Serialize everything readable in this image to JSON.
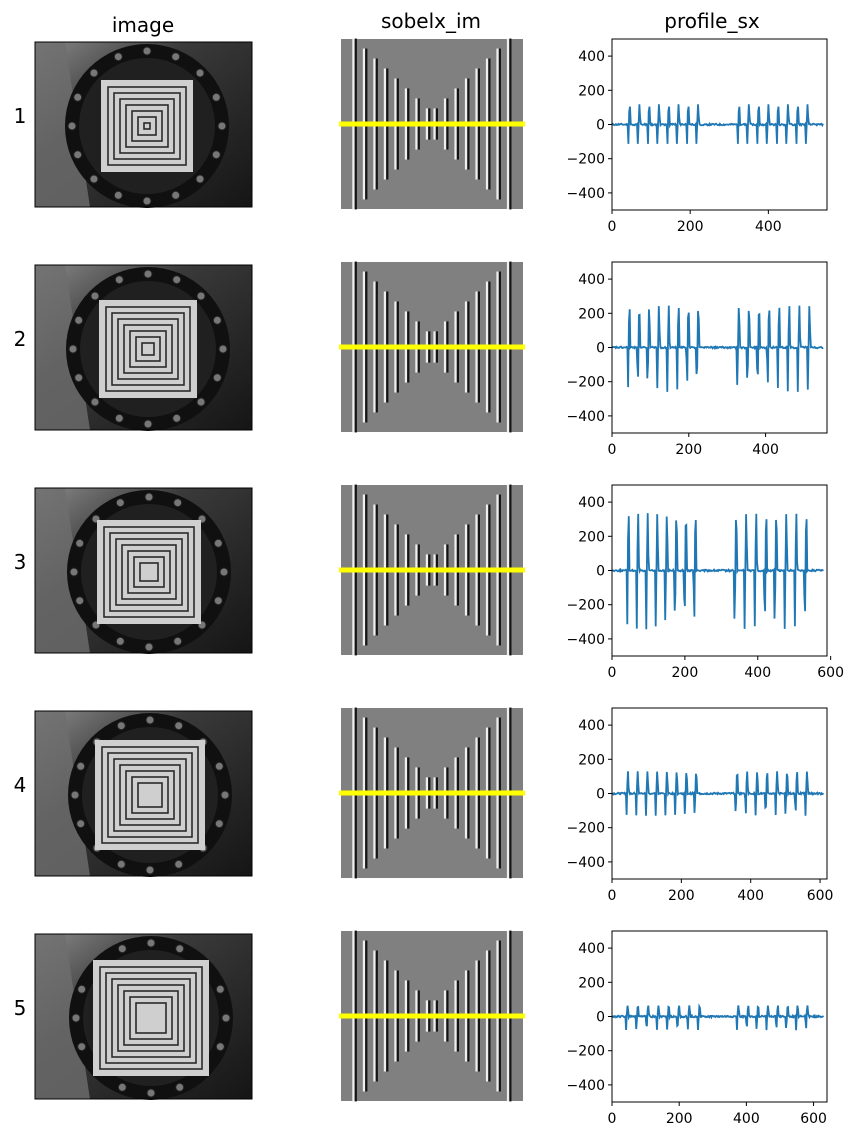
{
  "columns": [
    "image",
    "sobelx_im",
    "profile_sx"
  ],
  "colors": {
    "profile_line": "#1f77b4",
    "scan_line": "#ffff00",
    "sobel_bg": "#808080"
  },
  "chart_data": [
    {
      "type": "line",
      "row": "1",
      "xlim": [
        0,
        550
      ],
      "ylim": [
        -500,
        500
      ],
      "xticks": [
        0,
        200,
        400
      ],
      "yticks": [
        400,
        200,
        0,
        -200,
        -400
      ],
      "bursts": [
        [
          40,
          240
        ],
        [
          320,
          520
        ]
      ],
      "pulses": 8,
      "amp_hi": 120,
      "amp_lo": -130
    },
    {
      "type": "line",
      "row": "2",
      "xlim": [
        0,
        560
      ],
      "ylim": [
        -500,
        500
      ],
      "xticks": [
        0,
        200,
        400
      ],
      "yticks": [
        400,
        200,
        0,
        -200,
        -400
      ],
      "bursts": [
        [
          40,
          245
        ],
        [
          325,
          535
        ]
      ],
      "pulses": 8,
      "amp_hi": 245,
      "amp_lo": -260
    },
    {
      "type": "line",
      "row": "3",
      "xlim": [
        0,
        590
      ],
      "ylim": [
        -500,
        500
      ],
      "xticks": [
        0,
        200,
        400,
        600
      ],
      "yticks": [
        400,
        200,
        0,
        -200,
        -400
      ],
      "bursts": [
        [
          40,
          250
        ],
        [
          335,
          555
        ]
      ],
      "pulses": 8,
      "amp_hi": 335,
      "amp_lo": -345
    },
    {
      "type": "line",
      "row": "4",
      "xlim": [
        0,
        620
      ],
      "ylim": [
        -500,
        500
      ],
      "xticks": [
        0,
        200,
        400,
        600
      ],
      "yticks": [
        400,
        200,
        0,
        -200,
        -400
      ],
      "bursts": [
        [
          40,
          265
        ],
        [
          355,
          585
        ]
      ],
      "pulses": 8,
      "amp_hi": 130,
      "amp_lo": -130
    },
    {
      "type": "line",
      "row": "5",
      "xlim": [
        0,
        640
      ],
      "ylim": [
        -500,
        500
      ],
      "xticks": [
        0,
        200,
        400,
        600
      ],
      "yticks": [
        400,
        200,
        0,
        -200,
        -400
      ],
      "bursts": [
        [
          40,
          285
        ],
        [
          370,
          605
        ]
      ],
      "pulses": 8,
      "amp_hi": 65,
      "amp_lo": -80
    }
  ]
}
